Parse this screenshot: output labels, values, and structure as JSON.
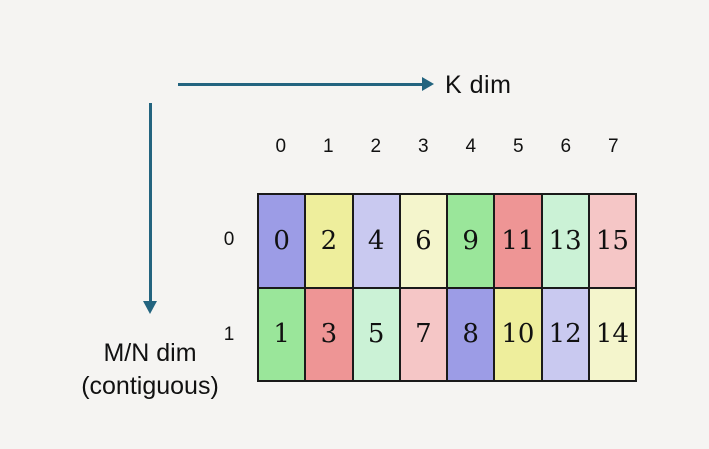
{
  "background": "#f5f4f2",
  "arrow_color": "#23647f",
  "labels": {
    "k_dim": "K dim",
    "mn_dim_line1": "M/N dim",
    "mn_dim_line2": "(contiguous)"
  },
  "grid": {
    "col_headers": [
      "0",
      "1",
      "2",
      "3",
      "4",
      "5",
      "6",
      "7"
    ],
    "rows": [
      {
        "header": "0",
        "cells": [
          {
            "value": "0",
            "color": "#9c9ce6"
          },
          {
            "value": "2",
            "color": "#eeee9c"
          },
          {
            "value": "4",
            "color": "#c9c9f0"
          },
          {
            "value": "6",
            "color": "#f4f5cc"
          },
          {
            "value": "9",
            "color": "#9ae69a"
          },
          {
            "value": "11",
            "color": "#ee9595"
          },
          {
            "value": "13",
            "color": "#cbf2d6"
          },
          {
            "value": "15",
            "color": "#f5c6c6"
          }
        ]
      },
      {
        "header": "1",
        "cells": [
          {
            "value": "1",
            "color": "#9ae69a"
          },
          {
            "value": "3",
            "color": "#ee9595"
          },
          {
            "value": "5",
            "color": "#cbf2d6"
          },
          {
            "value": "7",
            "color": "#f5c6c6"
          },
          {
            "value": "8",
            "color": "#9c9ce6"
          },
          {
            "value": "10",
            "color": "#eeee9c"
          },
          {
            "value": "12",
            "color": "#c9c9f0"
          },
          {
            "value": "14",
            "color": "#f4f5cc"
          }
        ]
      }
    ]
  }
}
